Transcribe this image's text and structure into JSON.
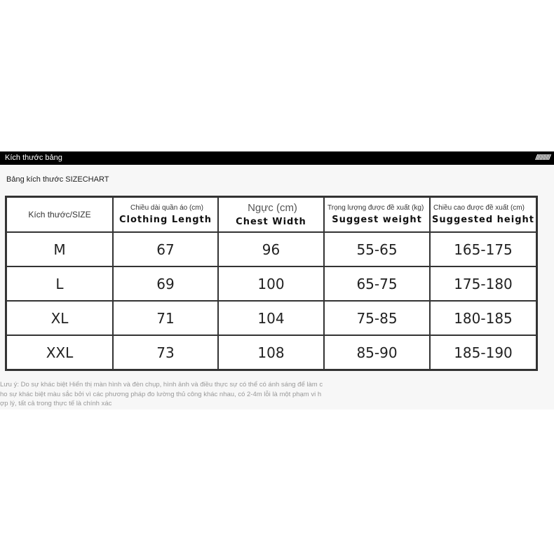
{
  "header": {
    "title": "Kích thước bảng",
    "stripes": "//////////"
  },
  "subtitle": "Bảng kích thước SIZECHART",
  "table": {
    "headers": [
      {
        "vi": "Kích thước/SIZE",
        "en": ""
      },
      {
        "vi": "Chiều dài quần áo (cm)",
        "en": "Clothing Length"
      },
      {
        "vi": "Ngực  (cm)",
        "en": "Chest Width"
      },
      {
        "vi": "Trọng lượng được đề xuất (kg)",
        "en": "Suggest weight"
      },
      {
        "vi": "Chiều cao được đề xuất (cm)",
        "en": "Suggested height"
      }
    ],
    "rows": [
      [
        "M",
        "67",
        "96",
        "55-65",
        "165-175"
      ],
      [
        "L",
        "69",
        "100",
        "65-75",
        "175-180"
      ],
      [
        "XL",
        "71",
        "104",
        "75-85",
        "180-185"
      ],
      [
        "XXL",
        "73",
        "108",
        "85-90",
        "185-190"
      ]
    ]
  },
  "note": {
    "lines": [
      "Lưu ý: Do sự khác biệt Hiển thị màn hình và đèn chụp, hình ảnh và điều thực sự có thể có ánh sáng để làm c",
      "ho sự khác biệt màu sắc bởi vì các phương pháp đo lường thủ công khác nhau, có 2-4m lỗi là một phạm vi h",
      "ợp lý, tất cả trong thực tế là chính xác"
    ]
  }
}
